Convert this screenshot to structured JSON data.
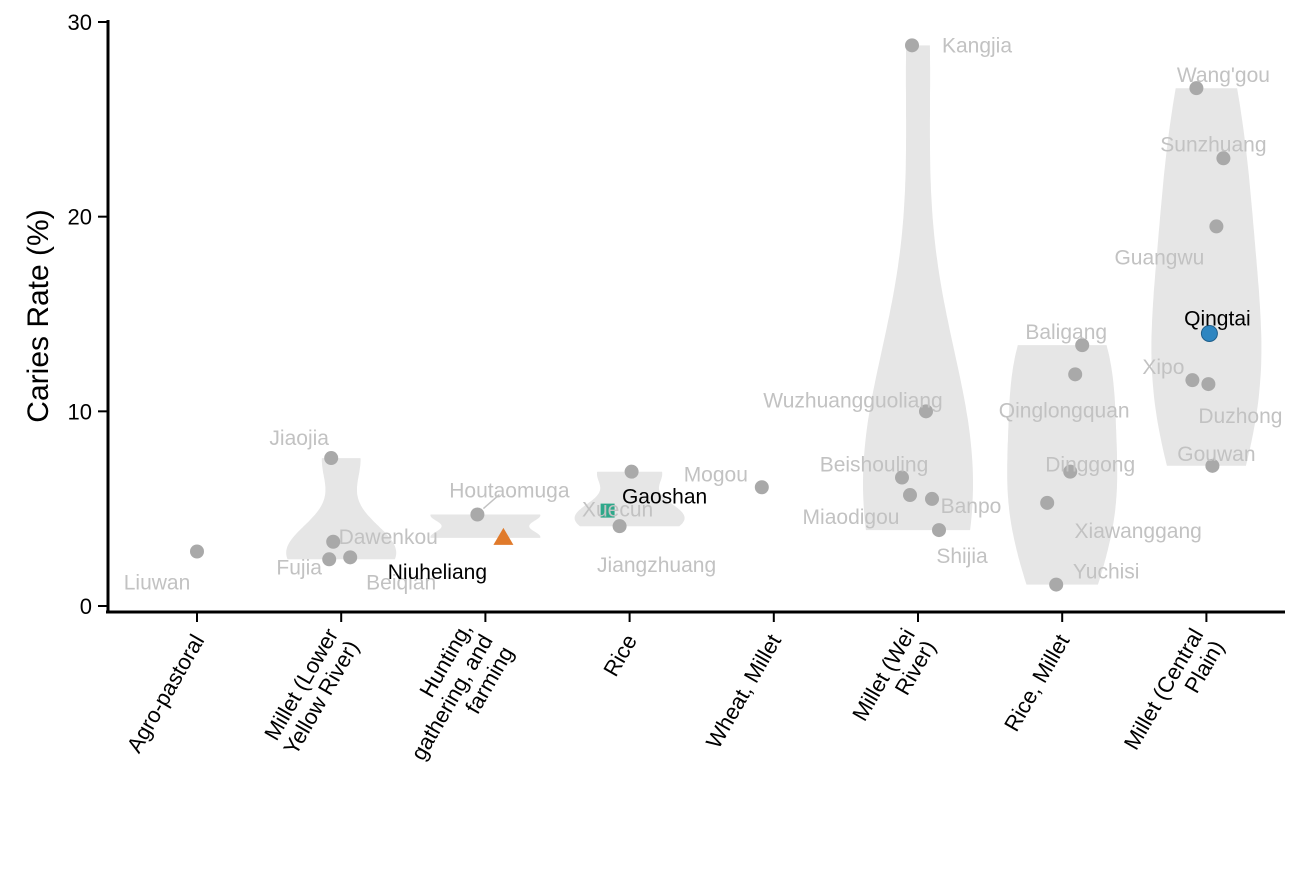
{
  "chart_data": {
    "type": "violin",
    "title": "",
    "xlabel": "",
    "ylabel": "Caries Rate (%)",
    "ylim": [
      0,
      30
    ],
    "yticks": [
      0,
      10,
      20,
      30
    ],
    "grid": false,
    "categories": [
      {
        "label": [
          "Agro-pastoral"
        ]
      },
      {
        "label": [
          "Millet (Lower",
          "Yellow River)"
        ]
      },
      {
        "label": [
          "Hunting,",
          "gathering, and",
          "farming"
        ]
      },
      {
        "label": [
          "Rice"
        ]
      },
      {
        "label": [
          "Wheat, Millet"
        ]
      },
      {
        "label": [
          "Millet (Wei",
          "River)"
        ]
      },
      {
        "label": [
          "Rice, Millet"
        ]
      },
      {
        "label": [
          "Millet (Central",
          "Plain)"
        ]
      }
    ],
    "points": [
      {
        "site": "Liuwan",
        "category": 0,
        "value": 2.8,
        "highlight": false
      },
      {
        "site": "Jiaojia",
        "category": 1,
        "value": 7.6,
        "highlight": false
      },
      {
        "site": "Dawenkou",
        "category": 1,
        "value": 3.3,
        "highlight": false
      },
      {
        "site": "Fujia",
        "category": 1,
        "value": 2.4,
        "highlight": false
      },
      {
        "site": "Beiqian",
        "category": 1,
        "value": 2.5,
        "highlight": false
      },
      {
        "site": "Houtaomuga",
        "category": 2,
        "value": 4.7,
        "highlight": false
      },
      {
        "site": "Niuheliang",
        "category": 2,
        "value": 3.5,
        "highlight": true,
        "marker": "triangle",
        "color": "#E07A2B"
      },
      {
        "site": "Xuecun",
        "category": 3,
        "value": 6.9,
        "highlight": false
      },
      {
        "site": "Gaoshan",
        "category": 3,
        "value": 4.9,
        "highlight": true,
        "marker": "square",
        "color": "#2EA88A"
      },
      {
        "site": "Jiangzhuang",
        "category": 3,
        "value": 4.1,
        "highlight": false
      },
      {
        "site": "Mogou",
        "category": 4,
        "value": 6.1,
        "highlight": false
      },
      {
        "site": "Kangjia",
        "category": 5,
        "value": 28.8,
        "highlight": false
      },
      {
        "site": "Wuzhuangguoliang",
        "category": 5,
        "value": 10.0,
        "highlight": false
      },
      {
        "site": "Beishouling",
        "category": 5,
        "value": 6.6,
        "highlight": false
      },
      {
        "site": "Miaodigou",
        "category": 5,
        "value": 5.7,
        "highlight": false
      },
      {
        "site": "Banpo",
        "category": 5,
        "value": 5.5,
        "highlight": false
      },
      {
        "site": "Shijia",
        "category": 5,
        "value": 3.9,
        "highlight": false
      },
      {
        "site": "Baligang",
        "category": 6,
        "value": 13.4,
        "highlight": false
      },
      {
        "site": "Qinglongquan",
        "category": 6,
        "value": 11.9,
        "highlight": false
      },
      {
        "site": "Dinggong",
        "category": 6,
        "value": 6.9,
        "highlight": false
      },
      {
        "site": "Xiawanggang",
        "category": 6,
        "value": 5.3,
        "highlight": false
      },
      {
        "site": "Yuchisi",
        "category": 6,
        "value": 1.1,
        "highlight": false
      },
      {
        "site": "Wang'gou",
        "category": 7,
        "value": 26.6,
        "highlight": false
      },
      {
        "site": "Sunzhuang",
        "category": 7,
        "value": 23.0,
        "highlight": false
      },
      {
        "site": "Guangwu",
        "category": 7,
        "value": 19.5,
        "highlight": false
      },
      {
        "site": "Qingtai",
        "category": 7,
        "value": 14.0,
        "highlight": true,
        "marker": "circle",
        "color": "#2E86C1"
      },
      {
        "site": "Xipo",
        "category": 7,
        "value": 11.6,
        "highlight": false
      },
      {
        "site": "Duzhong",
        "category": 7,
        "value": 11.4,
        "highlight": false
      },
      {
        "site": "Gouwan",
        "category": 7,
        "value": 7.2,
        "highlight": false
      }
    ],
    "colors": {
      "violin_fill": "#E6E6E6",
      "point": "#A9A9A9",
      "muted_label": "#C2C2C2",
      "highlight_label": "#000000"
    }
  }
}
